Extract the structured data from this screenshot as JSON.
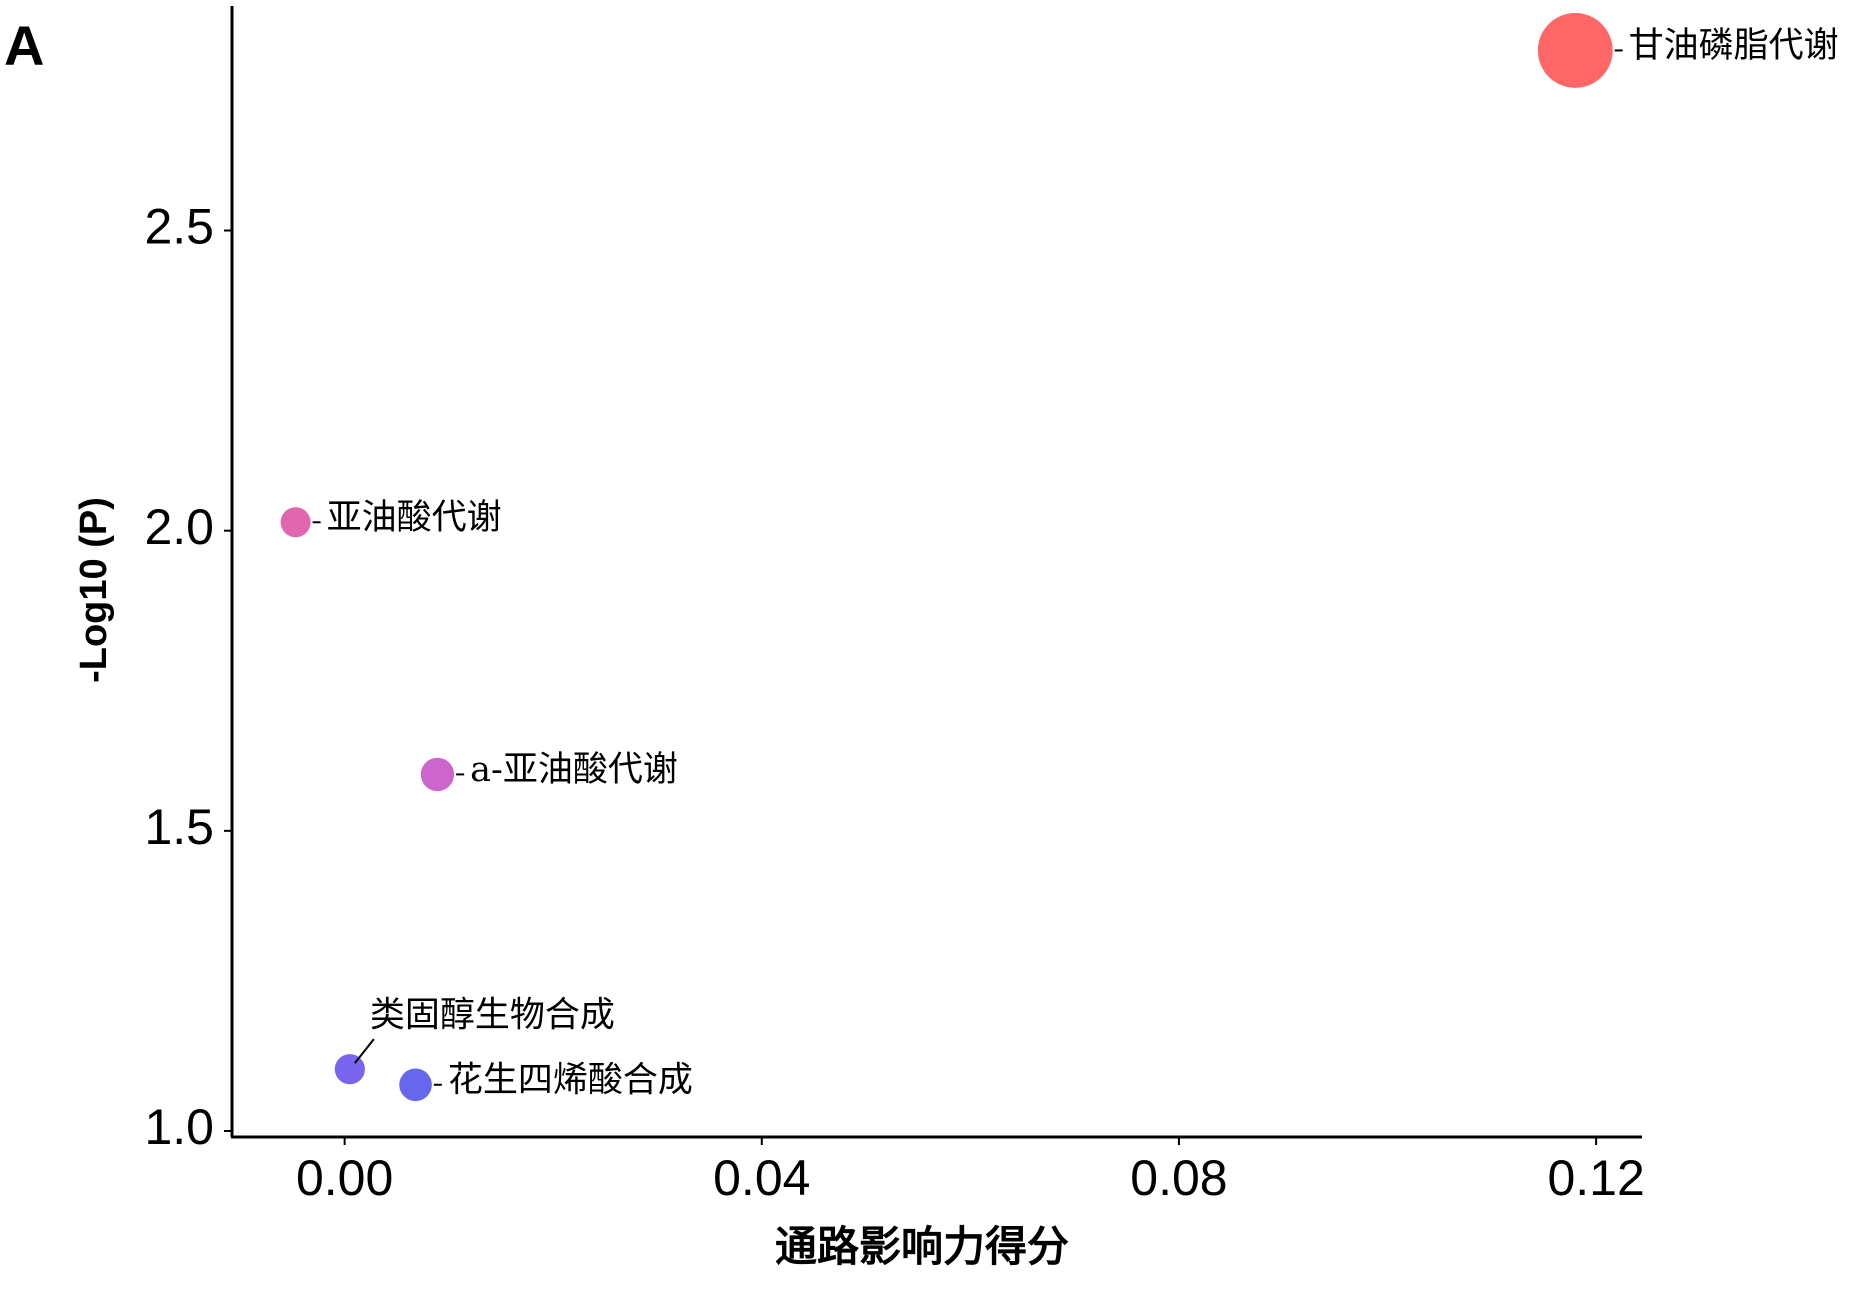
{
  "panel_label": "A",
  "chart_data": {
    "type": "scatter",
    "x_label": "通路影响力得分",
    "y_label": "-Log10 (P)",
    "labels": [
      "甘油磷脂代谢",
      "亚油酸代谢",
      "a-亚油酸代谢",
      "类固醇生物合成",
      "花生四烯酸合成"
    ],
    "x": [
      0.118,
      -0.0047,
      0.0089,
      0.0005,
      0.0068
    ],
    "y": [
      2.8,
      2.014,
      1.594,
      1.103,
      1.077
    ],
    "colors": [
      "#ff6666",
      "#e066b0",
      "#cc66cc",
      "#7a66ee",
      "#6666ee"
    ],
    "xlim": [
      -0.0108,
      0.1244
    ],
    "ylim": [
      0.99,
      2.874
    ],
    "xticks": [
      {
        "value": 0,
        "label": "0.00"
      },
      0.04,
      0.08,
      0.12
    ],
    "yticks": [
      {
        "value": 1,
        "label": "1.0"
      },
      1.5,
      {
        "value": 2,
        "label": "2.0"
      },
      2.5
    ]
  }
}
